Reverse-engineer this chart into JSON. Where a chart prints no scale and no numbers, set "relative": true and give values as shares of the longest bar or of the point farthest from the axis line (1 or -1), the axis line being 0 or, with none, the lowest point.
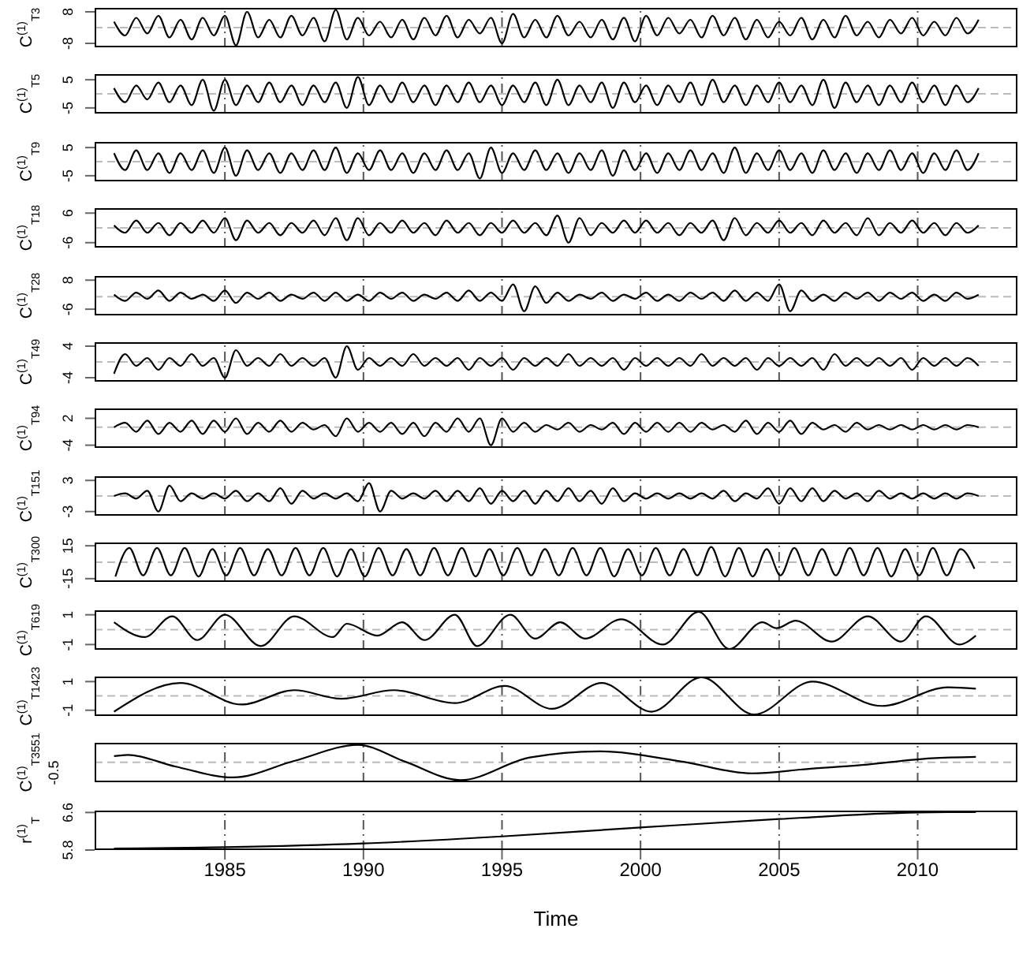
{
  "chart_data": [
    {
      "type": "line",
      "ylabel": "C$^{(1)}$$_{T3}$",
      "xlim": [
        1980.3,
        2013.6
      ],
      "xticks": [
        1985,
        1990,
        1995,
        2000,
        2005,
        2010
      ],
      "ylim": [
        -10,
        10
      ],
      "yticks": [
        -8,
        8
      ],
      "grid": "x",
      "tick_labels": "y",
      "ref_lines": [
        {
          "axis": "y",
          "value": 0,
          "color": "#bbbbbb",
          "line_style": "dashed"
        }
      ],
      "x": [
        1981,
        1981.4,
        1981.8,
        1982.2,
        1982.6,
        1983,
        1983.4,
        1983.8,
        1984.2,
        1984.6,
        1985,
        1985.4,
        1985.8,
        1986.2,
        1986.6,
        1987,
        1987.4,
        1987.8,
        1988.2,
        1988.6,
        1989,
        1989.4,
        1989.8,
        1990.2,
        1990.6,
        1991,
        1991.4,
        1991.8,
        1992.2,
        1992.6,
        1993,
        1993.4,
        1993.8,
        1994.2,
        1994.6,
        1995,
        1995.4,
        1995.8,
        1996.2,
        1996.6,
        1997,
        1997.4,
        1997.8,
        1998.2,
        1998.6,
        1999,
        1999.4,
        1999.8,
        2000.2,
        2000.6,
        2001,
        2001.4,
        2001.8,
        2002.2,
        2002.6,
        2003,
        2003.4,
        2003.8,
        2004.2,
        2004.6,
        2005,
        2005.4,
        2005.8,
        2006.2,
        2006.6,
        2007,
        2007.4,
        2007.8,
        2008.2,
        2008.6,
        2009,
        2009.4,
        2009.8,
        2010.2,
        2010.6,
        2011,
        2011.4,
        2011.8,
        2012.2
      ],
      "series": [
        {
          "color": "#000000",
          "values": [
            3,
            -4,
            5,
            -3,
            6,
            -5,
            4,
            -6,
            5,
            -4,
            6,
            -9,
            8,
            -5,
            4,
            -5,
            6,
            -4,
            5,
            -7,
            9,
            -6,
            5,
            -4,
            3,
            -5,
            4,
            -6,
            5,
            -4,
            6,
            -5,
            4,
            -3,
            5,
            -8,
            7,
            -5,
            4,
            -5,
            6,
            -4,
            3,
            -5,
            4,
            -6,
            5,
            -7,
            6,
            -4,
            5,
            -3,
            4,
            -5,
            6,
            -4,
            5,
            -6,
            4,
            -5,
            3,
            -4,
            5,
            -6,
            4,
            -5,
            6,
            -4,
            3,
            -5,
            4,
            -3,
            5,
            -4,
            3,
            -4,
            5,
            -3,
            4
          ]
        }
      ]
    },
    {
      "type": "line",
      "ylabel": "C$^{(1)}$$_{T5}$",
      "xlim": [
        1980.3,
        2013.6
      ],
      "xticks": [
        1985,
        1990,
        1995,
        2000,
        2005,
        2010
      ],
      "ylim": [
        -7,
        7
      ],
      "yticks": [
        -5,
        5
      ],
      "grid": "x",
      "tick_labels": "y",
      "ref_lines": [
        {
          "axis": "y",
          "value": 0,
          "color": "#bbbbbb",
          "line_style": "dashed"
        }
      ],
      "x": [
        1981,
        1981.4,
        1981.8,
        1982.2,
        1982.6,
        1983,
        1983.4,
        1983.8,
        1984.2,
        1984.6,
        1985,
        1985.4,
        1985.8,
        1986.2,
        1986.6,
        1987,
        1987.4,
        1987.8,
        1988.2,
        1988.6,
        1989,
        1989.4,
        1989.8,
        1990.2,
        1990.6,
        1991,
        1991.4,
        1991.8,
        1992.2,
        1992.6,
        1993,
        1993.4,
        1993.8,
        1994.2,
        1994.6,
        1995,
        1995.4,
        1995.8,
        1996.2,
        1996.6,
        1997,
        1997.4,
        1997.8,
        1998.2,
        1998.6,
        1999,
        1999.4,
        1999.8,
        2000.2,
        2000.6,
        2001,
        2001.4,
        2001.8,
        2002.2,
        2002.6,
        2003,
        2003.4,
        2003.8,
        2004.2,
        2004.6,
        2005,
        2005.4,
        2005.8,
        2006.2,
        2006.6,
        2007,
        2007.4,
        2007.8,
        2008.2,
        2008.6,
        2009,
        2009.4,
        2009.8,
        2010.2,
        2010.6,
        2011,
        2011.4,
        2011.8,
        2012.2
      ],
      "series": [
        {
          "color": "#000000",
          "values": [
            2,
            -3,
            3,
            -2,
            4,
            -3,
            3,
            -4,
            5,
            -6,
            5,
            -4,
            3,
            -3,
            4,
            -3,
            3,
            -4,
            3,
            -3,
            4,
            -5,
            6,
            -4,
            3,
            -3,
            4,
            -3,
            3,
            -4,
            3,
            -3,
            4,
            -3,
            3,
            -4,
            3,
            -3,
            4,
            -4,
            5,
            -4,
            3,
            -3,
            4,
            -5,
            4,
            -3,
            3,
            -4,
            3,
            -3,
            4,
            -4,
            5,
            -3,
            3,
            -4,
            3,
            -3,
            4,
            -3,
            3,
            -4,
            5,
            -5,
            4,
            -3,
            3,
            -4,
            3,
            -3,
            4,
            -3,
            3,
            -4,
            3,
            -3,
            2
          ]
        }
      ]
    },
    {
      "type": "line",
      "ylabel": "C$^{(1)}$$_{T9}$",
      "xlim": [
        1980.3,
        2013.6
      ],
      "xticks": [
        1985,
        1990,
        1995,
        2000,
        2005,
        2010
      ],
      "ylim": [
        -7,
        7
      ],
      "yticks": [
        -5,
        5
      ],
      "grid": "x",
      "tick_labels": "y",
      "ref_lines": [
        {
          "axis": "y",
          "value": 0,
          "color": "#bbbbbb",
          "line_style": "dashed"
        }
      ],
      "x": [
        1981,
        1981.4,
        1981.8,
        1982.2,
        1982.6,
        1983,
        1983.4,
        1983.8,
        1984.2,
        1984.6,
        1985,
        1985.4,
        1985.8,
        1986.2,
        1986.6,
        1987,
        1987.4,
        1987.8,
        1988.2,
        1988.6,
        1989,
        1989.4,
        1989.8,
        1990.2,
        1990.6,
        1991,
        1991.4,
        1991.8,
        1992.2,
        1992.6,
        1993,
        1993.4,
        1993.8,
        1994.2,
        1994.6,
        1995,
        1995.4,
        1995.8,
        1996.2,
        1996.6,
        1997,
        1997.4,
        1997.8,
        1998.2,
        1998.6,
        1999,
        1999.4,
        1999.8,
        2000.2,
        2000.6,
        2001,
        2001.4,
        2001.8,
        2002.2,
        2002.6,
        2003,
        2003.4,
        2003.8,
        2004.2,
        2004.6,
        2005,
        2005.4,
        2005.8,
        2006.2,
        2006.6,
        2007,
        2007.4,
        2007.8,
        2008.2,
        2008.6,
        2009,
        2009.4,
        2009.8,
        2010.2,
        2010.6,
        2011,
        2011.4,
        2011.8,
        2012.2
      ],
      "series": [
        {
          "color": "#000000",
          "values": [
            3,
            -3,
            4,
            -3,
            3,
            -4,
            3,
            -3,
            4,
            -4,
            5,
            -5,
            4,
            -3,
            3,
            -4,
            3,
            -3,
            4,
            -3,
            5,
            -4,
            3,
            -3,
            4,
            -3,
            3,
            -4,
            3,
            -3,
            4,
            -3,
            3,
            -6,
            5,
            -4,
            3,
            -3,
            4,
            -3,
            3,
            -4,
            3,
            -3,
            4,
            -5,
            4,
            -3,
            3,
            -4,
            3,
            -3,
            4,
            -3,
            3,
            -4,
            5,
            -4,
            3,
            -3,
            4,
            -3,
            3,
            -4,
            4,
            -3,
            3,
            -4,
            3,
            -3,
            4,
            -3,
            3,
            -4,
            3,
            -3,
            4,
            -3,
            3
          ]
        }
      ]
    },
    {
      "type": "line",
      "ylabel": "C$^{(1)}$$_{T18}$",
      "xlim": [
        1980.3,
        2013.6
      ],
      "xticks": [
        1985,
        1990,
        1995,
        2000,
        2005,
        2010
      ],
      "ylim": [
        -8,
        8
      ],
      "yticks": [
        -6,
        6
      ],
      "grid": "x",
      "tick_labels": "y",
      "ref_lines": [
        {
          "axis": "y",
          "value": 0,
          "color": "#bbbbbb",
          "line_style": "dashed"
        }
      ],
      "x": [
        1981,
        1981.4,
        1981.8,
        1982.2,
        1982.6,
        1983,
        1983.4,
        1983.8,
        1984.2,
        1984.6,
        1985,
        1985.4,
        1985.8,
        1986.2,
        1986.6,
        1987,
        1987.4,
        1987.8,
        1988.2,
        1988.6,
        1989,
        1989.4,
        1989.8,
        1990.2,
        1990.6,
        1991,
        1991.4,
        1991.8,
        1992.2,
        1992.6,
        1993,
        1993.4,
        1993.8,
        1994.2,
        1994.6,
        1995,
        1995.4,
        1995.8,
        1996.2,
        1996.6,
        1997,
        1997.4,
        1997.8,
        1998.2,
        1998.6,
        1999,
        1999.4,
        1999.8,
        2000.2,
        2000.6,
        2001,
        2001.4,
        2001.8,
        2002.2,
        2002.6,
        2003,
        2003.4,
        2003.8,
        2004.2,
        2004.6,
        2005,
        2005.4,
        2005.8,
        2006.2,
        2006.6,
        2007,
        2007.4,
        2007.8,
        2008.2,
        2008.6,
        2009,
        2009.4,
        2009.8,
        2010.2,
        2010.6,
        2011,
        2011.4,
        2011.8,
        2012.2
      ],
      "series": [
        {
          "color": "#000000",
          "values": [
            1,
            -2,
            3,
            -2,
            2,
            -3,
            2,
            -2,
            3,
            -2,
            4,
            -5,
            3,
            -2,
            2,
            -3,
            2,
            -2,
            3,
            -3,
            4,
            -5,
            4,
            -3,
            2,
            -2,
            3,
            -2,
            2,
            -3,
            3,
            -2,
            2,
            -3,
            2,
            -2,
            3,
            -2,
            2,
            -3,
            5,
            -6,
            4,
            -3,
            2,
            -2,
            3,
            -2,
            3,
            -2,
            2,
            -3,
            2,
            -2,
            3,
            -5,
            4,
            -3,
            2,
            -2,
            3,
            -2,
            2,
            -3,
            3,
            -2,
            2,
            -3,
            4,
            -3,
            2,
            -2,
            3,
            -2,
            2,
            -3,
            2,
            -2,
            1
          ]
        }
      ]
    },
    {
      "type": "line",
      "ylabel": "C$^{(1)}$$_{T28}$",
      "xlim": [
        1980.3,
        2013.6
      ],
      "xticks": [
        1985,
        1990,
        1995,
        2000,
        2005,
        2010
      ],
      "ylim": [
        -9,
        10
      ],
      "yticks": [
        -6,
        8
      ],
      "grid": "x",
      "tick_labels": "y",
      "ref_lines": [
        {
          "axis": "y",
          "value": 0,
          "color": "#bbbbbb",
          "line_style": "dashed"
        }
      ],
      "x": [
        1981,
        1981.4,
        1981.8,
        1982.2,
        1982.6,
        1983,
        1983.4,
        1983.8,
        1984.2,
        1984.6,
        1985,
        1985.4,
        1985.8,
        1986.2,
        1986.6,
        1987,
        1987.4,
        1987.8,
        1988.2,
        1988.6,
        1989,
        1989.4,
        1989.8,
        1990.2,
        1990.6,
        1991,
        1991.4,
        1991.8,
        1992.2,
        1992.6,
        1993,
        1993.4,
        1993.8,
        1994.2,
        1994.6,
        1995,
        1995.4,
        1995.8,
        1996.2,
        1996.6,
        1997,
        1997.4,
        1997.8,
        1998.2,
        1998.6,
        1999,
        1999.4,
        1999.8,
        2000.2,
        2000.6,
        2001,
        2001.4,
        2001.8,
        2002.2,
        2002.6,
        2003,
        2003.4,
        2003.8,
        2004.2,
        2004.6,
        2005,
        2005.4,
        2005.8,
        2006.2,
        2006.6,
        2007,
        2007.4,
        2007.8,
        2008.2,
        2008.6,
        2009,
        2009.4,
        2009.8,
        2010.2,
        2010.6,
        2011,
        2011.4,
        2011.8,
        2012.2
      ],
      "series": [
        {
          "color": "#000000",
          "values": [
            1,
            -2,
            2,
            -1,
            3,
            -2,
            2,
            -1,
            1,
            -2,
            3,
            -3,
            2,
            -1,
            2,
            -2,
            1,
            -1,
            2,
            -2,
            2,
            -2,
            1,
            -2,
            2,
            -1,
            2,
            -2,
            1,
            -1,
            2,
            -2,
            3,
            -2,
            2,
            -2,
            6,
            -7,
            5,
            -3,
            2,
            -2,
            1,
            -1,
            2,
            -2,
            1,
            -1,
            2,
            -2,
            1,
            -2,
            2,
            -1,
            2,
            -2,
            3,
            -2,
            2,
            -2,
            6,
            -7,
            3,
            -2,
            1,
            -2,
            2,
            -1,
            2,
            -2,
            2,
            -1,
            2,
            -2,
            1,
            -2,
            2,
            -1,
            1
          ]
        }
      ]
    },
    {
      "type": "line",
      "ylabel": "C$^{(1)}$$_{T49}$",
      "xlim": [
        1980.3,
        2013.6
      ],
      "xticks": [
        1985,
        1990,
        1995,
        2000,
        2005,
        2010
      ],
      "ylim": [
        -5,
        5
      ],
      "yticks": [
        -4,
        4
      ],
      "grid": "x",
      "tick_labels": "y",
      "ref_lines": [
        {
          "axis": "y",
          "value": 0,
          "color": "#bbbbbb",
          "line_style": "dashed"
        }
      ],
      "x": [
        1981,
        1981.4,
        1981.8,
        1982.2,
        1982.6,
        1983,
        1983.4,
        1983.8,
        1984.2,
        1984.6,
        1985,
        1985.4,
        1985.8,
        1986.2,
        1986.6,
        1987,
        1987.4,
        1987.8,
        1988.2,
        1988.6,
        1989,
        1989.4,
        1989.8,
        1990.2,
        1990.6,
        1991,
        1991.4,
        1991.8,
        1992.2,
        1992.6,
        1993,
        1993.4,
        1993.8,
        1994.2,
        1994.6,
        1995,
        1995.4,
        1995.8,
        1996.2,
        1996.6,
        1997,
        1997.4,
        1997.8,
        1998.2,
        1998.6,
        1999,
        1999.4,
        1999.8,
        2000.2,
        2000.6,
        2001,
        2001.4,
        2001.8,
        2002.2,
        2002.6,
        2003,
        2003.4,
        2003.8,
        2004.2,
        2004.6,
        2005,
        2005.4,
        2005.8,
        2006.2,
        2006.6,
        2007,
        2007.4,
        2007.8,
        2008.2,
        2008.6,
        2009,
        2009.4,
        2009.8,
        2010.2,
        2010.6,
        2011,
        2011.4,
        2011.8,
        2012.2
      ],
      "series": [
        {
          "color": "#000000",
          "values": [
            -3,
            2,
            -1,
            1,
            -2,
            1,
            -1,
            2,
            -1,
            1,
            -4,
            3,
            -1,
            1,
            -1,
            2,
            -1,
            1,
            -1,
            1,
            -4,
            4,
            -2,
            1,
            -1,
            1,
            -1,
            2,
            -1,
            1,
            -1,
            1,
            -2,
            1,
            -1,
            1,
            -2,
            1,
            -1,
            1,
            -1,
            2,
            -1,
            1,
            -1,
            1,
            -2,
            1,
            -1,
            1,
            -1,
            1,
            -1,
            2,
            -1,
            1,
            -1,
            1,
            -2,
            1,
            -1,
            1,
            -1,
            1,
            -2,
            2,
            -1,
            1,
            -1,
            1,
            -1,
            1,
            -2,
            1,
            -1,
            1,
            -1,
            1,
            -1
          ]
        }
      ]
    },
    {
      "type": "line",
      "ylabel": "C$^{(1)}$$_{T94}$",
      "xlim": [
        1980.3,
        2013.6
      ],
      "xticks": [
        1985,
        1990,
        1995,
        2000,
        2005,
        2010
      ],
      "ylim": [
        -4.6,
        4.2
      ],
      "yticks": [
        -4,
        2
      ],
      "grid": "x",
      "tick_labels": "y",
      "ref_lines": [
        {
          "axis": "y",
          "value": 0,
          "color": "#bbbbbb",
          "line_style": "dashed"
        }
      ],
      "x": [
        1981,
        1981.4,
        1981.8,
        1982.2,
        1982.6,
        1983,
        1983.4,
        1983.8,
        1984.2,
        1984.6,
        1985,
        1985.4,
        1985.8,
        1986.2,
        1986.6,
        1987,
        1987.4,
        1987.8,
        1988.2,
        1988.6,
        1989,
        1989.4,
        1989.8,
        1990.2,
        1990.6,
        1991,
        1991.4,
        1991.8,
        1992.2,
        1992.6,
        1993,
        1993.4,
        1993.8,
        1994.2,
        1994.6,
        1995,
        1995.4,
        1995.8,
        1996.2,
        1996.6,
        1997,
        1997.4,
        1997.8,
        1998.2,
        1998.6,
        1999,
        1999.4,
        1999.8,
        2000.2,
        2000.6,
        2001,
        2001.4,
        2001.8,
        2002.2,
        2002.6,
        2003,
        2003.4,
        2003.8,
        2004.2,
        2004.6,
        2005,
        2005.4,
        2005.8,
        2006.2,
        2006.6,
        2007,
        2007.4,
        2007.8,
        2008.2,
        2008.6,
        2009,
        2009.4,
        2009.8,
        2010.2,
        2010.6,
        2011,
        2011.4,
        2011.8,
        2012.2
      ],
      "series": [
        {
          "color": "#000000",
          "values": [
            0,
            1,
            -1,
            1.5,
            -1.5,
            1,
            -1,
            1.5,
            -1.5,
            1.5,
            -1,
            2,
            -1.5,
            1,
            -1,
            1.5,
            -1,
            1,
            -0.5,
            0.5,
            -2,
            2,
            -1,
            1,
            -1,
            1,
            -1.5,
            1,
            -2,
            1,
            -1,
            2,
            -1,
            2,
            -4,
            2,
            -1,
            1,
            -1,
            0.5,
            -0.5,
            1,
            -1,
            0.5,
            -0.5,
            1,
            -1.5,
            1,
            -1,
            1,
            -1,
            1,
            -1,
            1,
            -0.5,
            0.5,
            -1,
            1.5,
            -1.5,
            1,
            -1,
            1.5,
            -1.5,
            1,
            -0.5,
            0.5,
            -1,
            1,
            -0.5,
            0.5,
            -0.5,
            0.5,
            -0.5,
            0.5,
            -0.5,
            0.5,
            -0.5,
            0.5,
            0
          ]
        }
      ]
    },
    {
      "type": "line",
      "ylabel": "C$^{(1)}$$_{T151}$",
      "xlim": [
        1980.3,
        2013.6
      ],
      "xticks": [
        1985,
        1990,
        1995,
        2000,
        2005,
        2010
      ],
      "ylim": [
        -3.8,
        3.8
      ],
      "yticks": [
        -3,
        3
      ],
      "grid": "x",
      "tick_labels": "y",
      "ref_lines": [
        {
          "axis": "y",
          "value": 0,
          "color": "#bbbbbb",
          "line_style": "dashed"
        }
      ],
      "x": [
        1981,
        1981.4,
        1981.8,
        1982.2,
        1982.6,
        1983,
        1983.4,
        1983.8,
        1984.2,
        1984.6,
        1985,
        1985.4,
        1985.8,
        1986.2,
        1986.6,
        1987,
        1987.4,
        1987.8,
        1988.2,
        1988.6,
        1989,
        1989.4,
        1989.8,
        1990.2,
        1990.6,
        1991,
        1991.4,
        1991.8,
        1992.2,
        1992.6,
        1993,
        1993.4,
        1993.8,
        1994.2,
        1994.6,
        1995,
        1995.4,
        1995.8,
        1996.2,
        1996.6,
        1997,
        1997.4,
        1997.8,
        1998.2,
        1998.6,
        1999,
        1999.4,
        1999.8,
        2000.2,
        2000.6,
        2001,
        2001.4,
        2001.8,
        2002.2,
        2002.6,
        2003,
        2003.4,
        2003.8,
        2004.2,
        2004.6,
        2005,
        2005.4,
        2005.8,
        2006.2,
        2006.6,
        2007,
        2007.4,
        2007.8,
        2008.2,
        2008.6,
        2009,
        2009.4,
        2009.8,
        2010.2,
        2010.6,
        2011,
        2011.4,
        2011.8,
        2012.2
      ],
      "series": [
        {
          "color": "#000000",
          "values": [
            0,
            0.5,
            -0.5,
            1,
            -3,
            2,
            -1,
            0.5,
            -0.5,
            0.5,
            -0.5,
            1,
            -1,
            0.5,
            -1,
            1.5,
            -1.5,
            1,
            -0.5,
            0.5,
            -0.5,
            0.5,
            -1,
            2.5,
            -3,
            1,
            -0.5,
            0.5,
            -0.5,
            1,
            -1,
            1,
            -1,
            1.5,
            -1.5,
            1,
            -1,
            1,
            -1.5,
            1,
            -1,
            1.5,
            -1,
            1,
            -1.5,
            1.5,
            -1,
            0.5,
            -0.5,
            0.5,
            -0.5,
            0.5,
            -0.5,
            0.5,
            -0.5,
            1,
            -1,
            0.5,
            -0.5,
            1.5,
            -1.5,
            1.5,
            -1,
            1.5,
            -1,
            1,
            -0.5,
            0.5,
            -1,
            1,
            -0.5,
            0.5,
            -0.5,
            0.5,
            -0.5,
            0.5,
            -0.5,
            0.5,
            0
          ]
        }
      ]
    },
    {
      "type": "line",
      "ylabel": "C$^{(1)}$$_{T300}$",
      "xlim": [
        1980.3,
        2013.6
      ],
      "xticks": [
        1985,
        1990,
        1995,
        2000,
        2005,
        2010
      ],
      "ylim": [
        -18,
        18
      ],
      "yticks": [
        -15,
        15
      ],
      "grid": "x",
      "tick_labels": "y",
      "ref_lines": [
        {
          "axis": "y",
          "value": 0,
          "color": "#bbbbbb",
          "line_style": "dashed"
        }
      ],
      "x": [
        1981.05,
        1981.55,
        1982.05,
        1982.55,
        1983.05,
        1983.55,
        1984.05,
        1984.55,
        1985.05,
        1985.55,
        1986.05,
        1986.55,
        1987.05,
        1987.55,
        1988.05,
        1988.55,
        1989.05,
        1989.55,
        1990.05,
        1990.55,
        1991.05,
        1991.55,
        1992.05,
        1992.55,
        1993.05,
        1993.55,
        1994.05,
        1994.55,
        1995.05,
        1995.55,
        1996.05,
        1996.55,
        1997.05,
        1997.55,
        1998.05,
        1998.55,
        1999.05,
        1999.55,
        2000.05,
        2000.55,
        2001.05,
        2001.55,
        2002.05,
        2002.55,
        2003.05,
        2003.55,
        2004.05,
        2004.55,
        2005.05,
        2005.55,
        2006.05,
        2006.55,
        2007.05,
        2007.55,
        2008.05,
        2008.55,
        2009.05,
        2009.55,
        2010.05,
        2010.55,
        2011.05,
        2011.55,
        2012.05
      ],
      "series": [
        {
          "color": "#000000",
          "values": [
            -13,
            13,
            -12,
            13,
            -12,
            13,
            -13,
            12,
            -12,
            13,
            -12,
            12,
            -12,
            13,
            -12,
            13,
            -13,
            12,
            -13,
            13,
            -12,
            12,
            -12,
            13,
            -12,
            13,
            -13,
            12,
            -12,
            13,
            -12,
            12,
            -12,
            13,
            -12,
            13,
            -13,
            12,
            -12,
            13,
            -12,
            12,
            -12,
            14,
            -13,
            13,
            -13,
            12,
            -12,
            13,
            -12,
            12,
            -12,
            13,
            -12,
            13,
            -13,
            12,
            -12,
            13,
            -12,
            12,
            -6
          ]
        }
      ]
    },
    {
      "type": "line",
      "ylabel": "C$^{(1)}$$_{T619}$",
      "xlim": [
        1980.3,
        2013.6
      ],
      "xticks": [
        1985,
        1990,
        1995,
        2000,
        2005,
        2010
      ],
      "ylim": [
        -1.35,
        1.3
      ],
      "yticks": [
        -1,
        1
      ],
      "grid": "x",
      "tick_labels": "y",
      "ref_lines": [
        {
          "axis": "y",
          "value": 0,
          "color": "#bbbbbb",
          "line_style": "dashed"
        }
      ],
      "x": [
        1981.0,
        1982.1,
        1983.1,
        1984.0,
        1985.0,
        1986.3,
        1987.5,
        1988.9,
        1989.4,
        1990.5,
        1991.4,
        1992.2,
        1993.3,
        1994.1,
        1995.3,
        1996.2,
        1997.1,
        1998.0,
        1999.3,
        2000.8,
        2002.1,
        2003.2,
        2004.4,
        2004.9,
        2005.6,
        2006.9,
        2008.2,
        2009.4,
        2010.3,
        2011.5,
        2012.1
      ],
      "series": [
        {
          "color": "#000000",
          "values": [
            0.5,
            -0.5,
            0.9,
            -0.7,
            1.0,
            -1.1,
            0.9,
            -0.5,
            0.4,
            -0.4,
            0.5,
            -0.7,
            1.0,
            -1.1,
            1.0,
            -0.6,
            0.5,
            -0.6,
            0.7,
            -1.0,
            1.2,
            -1.3,
            0.5,
            0.1,
            0.6,
            -0.8,
            0.9,
            -0.8,
            0.9,
            -1.0,
            -0.4
          ]
        }
      ]
    },
    {
      "type": "line",
      "ylabel": "C$^{(1)}$$_{T1423}$",
      "xlim": [
        1980.3,
        2013.6
      ],
      "xticks": [
        1985,
        1990,
        1995,
        2000,
        2005,
        2010
      ],
      "ylim": [
        -1.4,
        1.35
      ],
      "yticks": [
        -1,
        1
      ],
      "grid": "x",
      "tick_labels": "y",
      "ref_lines": [
        {
          "axis": "y",
          "value": 0,
          "color": "#bbbbbb",
          "line_style": "dashed"
        }
      ],
      "x": [
        1981.0,
        1983.4,
        1985.6,
        1987.5,
        1989.2,
        1991.1,
        1993.3,
        1995.1,
        1996.8,
        1998.6,
        2000.4,
        2002.2,
        2004.1,
        2006.2,
        2008.7,
        2011.1,
        2012.1
      ],
      "series": [
        {
          "color": "#000000",
          "values": [
            -1.1,
            0.9,
            -0.6,
            0.4,
            -0.2,
            0.4,
            -0.5,
            0.7,
            -0.9,
            0.9,
            -1.1,
            1.3,
            -1.3,
            1.0,
            -0.7,
            0.6,
            0.5
          ]
        }
      ]
    },
    {
      "type": "line",
      "ylabel": "C$^{(1)}$$_{T3551}$",
      "xlim": [
        1980.3,
        2013.6
      ],
      "xticks": [
        1985,
        1990,
        1995,
        2000,
        2005,
        2010
      ],
      "relative": true,
      "annotations": [
        "-0.5"
      ],
      "grid": "x",
      "tick_labels": "y",
      "ref_lines": [
        {
          "axis": "y",
          "value": 0,
          "color": "#bbbbbb",
          "line_style": "dashed"
        }
      ],
      "x": [
        1981.0,
        1981.5,
        1983.2,
        1985.3,
        1987.5,
        1989.8,
        1991.5,
        1993.5,
        1996.0,
        1998.5,
        2001.5,
        2004.0,
        2006.0,
        2008.0,
        2010.5,
        2012.1
      ],
      "series": [
        {
          "color": "#000000",
          "values": [
            0.35,
            0.42,
            -0.23,
            -0.85,
            0.08,
            0.98,
            0.04,
            -1,
            0.27,
            0.62,
            0.04,
            -0.62,
            -0.38,
            -0.15,
            0.23,
            0.31
          ]
        }
      ]
    },
    {
      "type": "line",
      "ylabel": "r$^{(1)}$$_{T}$",
      "xlabel": "Time",
      "xlim": [
        1980.3,
        2013.6
      ],
      "xticks": [
        1985,
        1990,
        1995,
        2000,
        2005,
        2010
      ],
      "ylim": [
        5.8,
        6.64
      ],
      "yticks": [
        5.8,
        6.6
      ],
      "grid": "x",
      "x": [
        1981,
        1985,
        1990,
        1995,
        2000,
        2005,
        2010,
        2012.1
      ],
      "series": [
        {
          "color": "#000000",
          "values": [
            5.83,
            5.86,
            5.94,
            6.09,
            6.28,
            6.46,
            6.6,
            6.61
          ]
        }
      ]
    }
  ]
}
